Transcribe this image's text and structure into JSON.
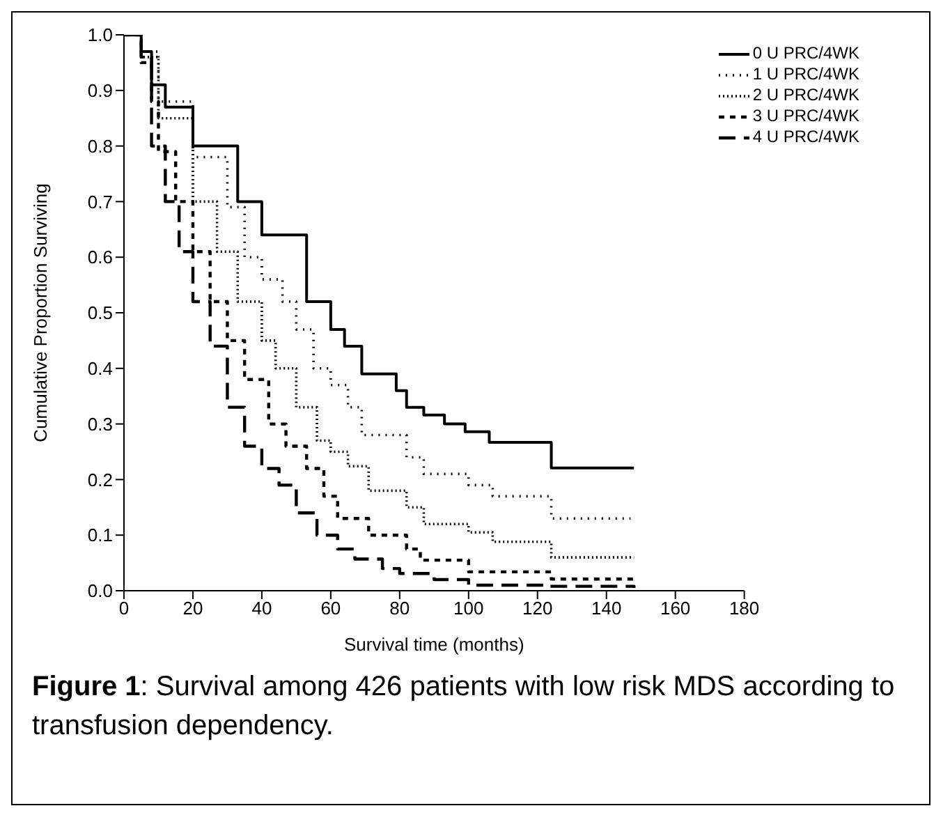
{
  "chart_data": {
    "type": "step",
    "xlabel": "Survival time (months)",
    "ylabel": "Cumulative Proportion Surviving",
    "annotations": [
      "Figure 1: Survival among 426 patients with low risk MDS according to transfusion dependency."
    ],
    "xlim": [
      0,
      180
    ],
    "xticks": [
      0,
      20,
      40,
      60,
      80,
      100,
      120,
      140,
      160,
      180
    ],
    "ylim": [
      0,
      1
    ],
    "yticks": [
      {
        "value": 0,
        "label": "0.0"
      },
      0.1,
      0.2,
      0.3,
      0.4,
      0.5,
      0.6,
      0.7,
      0.8,
      0.9,
      {
        "value": 1,
        "label": "1.0"
      }
    ],
    "legend": "top right",
    "grid": false,
    "marker": "none",
    "series": [
      {
        "name": "0 U PRC/4WK",
        "color": "#000000",
        "line_style": "solid",
        "x": [
          0,
          5,
          8,
          12,
          20,
          33,
          40,
          53,
          60,
          64,
          69,
          79,
          82,
          87,
          93,
          99,
          106,
          124,
          148
        ],
        "values": [
          1,
          0.97,
          0.91,
          0.87,
          0.8,
          0.7,
          0.64,
          0.52,
          0.47,
          0.44,
          0.39,
          0.36,
          0.33,
          0.316,
          0.3,
          0.286,
          0.267,
          0.221,
          0.221
        ]
      },
      {
        "name": "1 U PRC/4WK",
        "color": "#000000",
        "line_style": "dotted",
        "x": [
          0,
          5,
          10,
          20,
          30,
          35,
          40,
          46,
          50,
          55,
          60,
          65,
          69,
          79,
          82,
          87,
          100,
          107,
          124,
          147
        ],
        "values": [
          1,
          0.97,
          0.88,
          0.78,
          0.69,
          0.6,
          0.56,
          0.52,
          0.47,
          0.4,
          0.37,
          0.33,
          0.28,
          0.28,
          0.24,
          0.21,
          0.19,
          0.17,
          0.13,
          0.13
        ]
      },
      {
        "name": "2 U PRC/4WK",
        "color": "#000000",
        "line_style": "dotted",
        "x": [
          0,
          5,
          10,
          20,
          27,
          33,
          40,
          44,
          50,
          56,
          60,
          65,
          71,
          78,
          82,
          87,
          93,
          100,
          107,
          124,
          148
        ],
        "values": [
          1,
          0.96,
          0.85,
          0.7,
          0.61,
          0.52,
          0.45,
          0.4,
          0.33,
          0.27,
          0.25,
          0.224,
          0.18,
          0.18,
          0.15,
          0.12,
          0.12,
          0.105,
          0.088,
          0.06,
          0.06
        ]
      },
      {
        "name": "3 U PRC/4WK",
        "color": "#000000",
        "line_style": "dashed",
        "x": [
          0,
          5,
          8,
          10,
          15,
          20,
          25,
          30,
          35,
          42,
          47,
          53,
          58,
          62,
          71,
          78,
          82,
          86,
          93,
          100,
          124,
          148
        ],
        "values": [
          1,
          0.95,
          0.88,
          0.79,
          0.7,
          0.61,
          0.52,
          0.45,
          0.38,
          0.3,
          0.26,
          0.22,
          0.17,
          0.13,
          0.1,
          0.1,
          0.075,
          0.055,
          0.055,
          0.034,
          0.021,
          0.021
        ]
      },
      {
        "name": "4 U PRC/4WK",
        "color": "#000000",
        "line_style": "dashed",
        "x": [
          0,
          5,
          8,
          12,
          16,
          20,
          25,
          30,
          35,
          40,
          45,
          50,
          56,
          62,
          67,
          75,
          80,
          90,
          100,
          123,
          148
        ],
        "values": [
          1,
          0.96,
          0.8,
          0.7,
          0.61,
          0.52,
          0.44,
          0.33,
          0.26,
          0.22,
          0.19,
          0.14,
          0.1,
          0.075,
          0.057,
          0.04,
          0.031,
          0.02,
          0.01,
          0.008,
          0.005
        ]
      }
    ]
  }
}
